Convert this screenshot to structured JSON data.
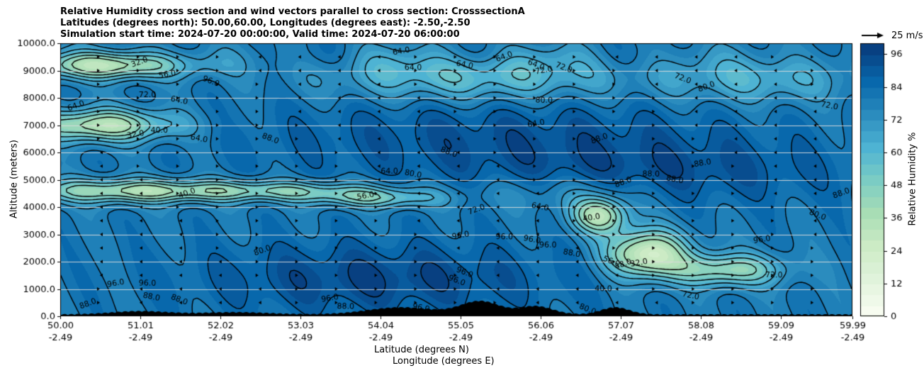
{
  "title": {
    "line1": "Relative Humidity cross section and wind vectors parallel to cross section: CrosssectionA",
    "line2": "Latitudes (degrees north): 50.00,60.00, Longitudes (degrees east): -2.50,-2.50",
    "line3": "Simulation start time: 2024-07-20 00:00:00, Valid time: 2024-07-20 06:00:00"
  },
  "quiver_key": "25 m/s",
  "colorbar": {
    "label": "Relative Humidity %",
    "ticks": [
      "0",
      "12",
      "24",
      "36",
      "48",
      "60",
      "72",
      "84",
      "96"
    ],
    "tick_values": [
      0,
      12,
      24,
      36,
      48,
      60,
      72,
      84,
      96
    ],
    "range": [
      0,
      100
    ],
    "levels": 25,
    "colormap": "GnBu",
    "colors": [
      "#f7fcf0",
      "#e0f3db",
      "#ccebc5",
      "#a8ddb5",
      "#7bccc4",
      "#4eb3d3",
      "#2b8cbe",
      "#0868ac",
      "#084081"
    ]
  },
  "chart_data": {
    "type": "heatmap",
    "subtype": "filled contour cross-section with contour lines, terrain and wind vectors",
    "xlabel": "Latitude (degrees N)",
    "xlabel2": "Longitude (degrees E)",
    "ylabel": "Altitude (meters)",
    "xlim": [
      50.0,
      59.99
    ],
    "ylim": [
      0,
      10000
    ],
    "x_ticks": [
      {
        "lat": "50.00",
        "lon": "-2.49"
      },
      {
        "lat": "51.01",
        "lon": "-2.49"
      },
      {
        "lat": "52.02",
        "lon": "-2.49"
      },
      {
        "lat": "53.03",
        "lon": "-2.49"
      },
      {
        "lat": "54.04",
        "lon": "-2.49"
      },
      {
        "lat": "55.05",
        "lon": "-2.49"
      },
      {
        "lat": "56.06",
        "lon": "-2.49"
      },
      {
        "lat": "57.07",
        "lon": "-2.49"
      },
      {
        "lat": "58.08",
        "lon": "-2.49"
      },
      {
        "lat": "59.09",
        "lon": "-2.49"
      },
      {
        "lat": "59.99",
        "lon": "-2.49"
      }
    ],
    "y_ticks": [
      "0.0",
      "1000.0",
      "2000.0",
      "3000.0",
      "4000.0",
      "5000.0",
      "6000.0",
      "7000.0",
      "8000.0",
      "9000.0",
      "10000.0"
    ],
    "y_tick_values": [
      0,
      1000,
      2000,
      3000,
      4000,
      5000,
      6000,
      7000,
      8000,
      9000,
      10000
    ],
    "horizontal_grid": true,
    "contour_levels": [
      40,
      48,
      56,
      64,
      72,
      80,
      88,
      96
    ],
    "contour_labels": [
      {
        "text": "32.0",
        "x": 51.0,
        "y": 9300
      },
      {
        "text": "56.0",
        "x": 51.35,
        "y": 8850
      },
      {
        "text": "72.0",
        "x": 51.1,
        "y": 8100
      },
      {
        "text": "64.0",
        "x": 51.5,
        "y": 7900
      },
      {
        "text": "96.0",
        "x": 51.9,
        "y": 8600
      },
      {
        "text": "64.0",
        "x": 50.2,
        "y": 7700
      },
      {
        "text": "32.0",
        "x": 50.95,
        "y": 6650
      },
      {
        "text": "40.0",
        "x": 51.25,
        "y": 6800
      },
      {
        "text": "64.0",
        "x": 51.75,
        "y": 6500
      },
      {
        "text": "88.0",
        "x": 52.65,
        "y": 6500
      },
      {
        "text": "40.0",
        "x": 51.6,
        "y": 4500
      },
      {
        "text": "56.0",
        "x": 53.85,
        "y": 4400
      },
      {
        "text": "64.0",
        "x": 54.15,
        "y": 5300
      },
      {
        "text": "80.0",
        "x": 54.45,
        "y": 5200
      },
      {
        "text": "88.0",
        "x": 54.9,
        "y": 6000
      },
      {
        "text": "72.0",
        "x": 55.25,
        "y": 3900
      },
      {
        "text": "96.0",
        "x": 55.05,
        "y": 2950
      },
      {
        "text": "96.0",
        "x": 55.6,
        "y": 2900
      },
      {
        "text": "96.0",
        "x": 55.95,
        "y": 2800
      },
      {
        "text": "96.0",
        "x": 55.1,
        "y": 1600
      },
      {
        "text": "80.0",
        "x": 52.55,
        "y": 2400
      },
      {
        "text": "64.0",
        "x": 56.0,
        "y": 7050
      },
      {
        "text": "80.0",
        "x": 56.1,
        "y": 7900
      },
      {
        "text": "64.0",
        "x": 56.05,
        "y": 4000
      },
      {
        "text": "72.0",
        "x": 56.35,
        "y": 9100
      },
      {
        "text": "88.0",
        "x": 56.8,
        "y": 6500
      },
      {
        "text": "40.0",
        "x": 56.7,
        "y": 3600
      },
      {
        "text": "96.0",
        "x": 56.15,
        "y": 2600
      },
      {
        "text": "88.0",
        "x": 56.45,
        "y": 2300
      },
      {
        "text": "56.0",
        "x": 56.95,
        "y": 2000
      },
      {
        "text": "48.0",
        "x": 57.1,
        "y": 1900
      },
      {
        "text": "32.0",
        "x": 57.3,
        "y": 1950
      },
      {
        "text": "40.0",
        "x": 56.85,
        "y": 1000
      },
      {
        "text": "72.0",
        "x": 57.95,
        "y": 750
      },
      {
        "text": "80.0",
        "x": 56.65,
        "y": 250
      },
      {
        "text": "88.0",
        "x": 57.1,
        "y": 4900
      },
      {
        "text": "88.0",
        "x": 58.1,
        "y": 5600
      },
      {
        "text": "88.0",
        "x": 57.45,
        "y": 5200
      },
      {
        "text": "88.0",
        "x": 57.75,
        "y": 5000
      },
      {
        "text": "72.0",
        "x": 57.85,
        "y": 8700
      },
      {
        "text": "80.0",
        "x": 58.15,
        "y": 8400
      },
      {
        "text": "96.0",
        "x": 58.85,
        "y": 2800
      },
      {
        "text": "72.0",
        "x": 59.0,
        "y": 1500
      },
      {
        "text": "72.0",
        "x": 59.7,
        "y": 7700
      },
      {
        "text": "80.0",
        "x": 59.55,
        "y": 3700
      },
      {
        "text": "88.0",
        "x": 59.85,
        "y": 4500
      },
      {
        "text": "96.0",
        "x": 50.7,
        "y": 1200
      },
      {
        "text": "96.0",
        "x": 51.1,
        "y": 1200
      },
      {
        "text": "88.0",
        "x": 51.15,
        "y": 700
      },
      {
        "text": "88.0",
        "x": 51.5,
        "y": 600
      },
      {
        "text": "88.0",
        "x": 50.35,
        "y": 450
      },
      {
        "text": "96.0",
        "x": 53.4,
        "y": 650
      },
      {
        "text": "88.0",
        "x": 53.6,
        "y": 350
      },
      {
        "text": "96.0",
        "x": 54.55,
        "y": 300
      },
      {
        "text": "96.0",
        "x": 55.0,
        "y": 1300
      },
      {
        "text": "96.0",
        "x": 55.05,
        "y": 250
      },
      {
        "text": "64.0",
        "x": 54.3,
        "y": 9700
      },
      {
        "text": "64.0",
        "x": 54.45,
        "y": 9100
      },
      {
        "text": "64.0",
        "x": 55.1,
        "y": 9200
      },
      {
        "text": "64.0",
        "x": 56.0,
        "y": 9200
      },
      {
        "text": "64.0",
        "x": 55.6,
        "y": 9500
      },
      {
        "text": "72.0",
        "x": 56.1,
        "y": 9000
      }
    ],
    "relative_humidity_field_note": "Filled contours 0-100 %, 25 levels; dry (light green) layers near 8500-9500 m and 4000-5000 m at 50-51.5 N, a dry tongue 4500 m sloping to 57-58 N at 1500-4000 m; near-saturated (dark blue) below 2500 m from 52.5-56 N and above 5000 m from 53-59 N.",
    "terrain_note": "Black terrain profile along the bottom, small hills near 50.5-51.5 N, 53.5-56 N and 57-57.5 N, maxima about 500 m near 55.3 N."
  }
}
